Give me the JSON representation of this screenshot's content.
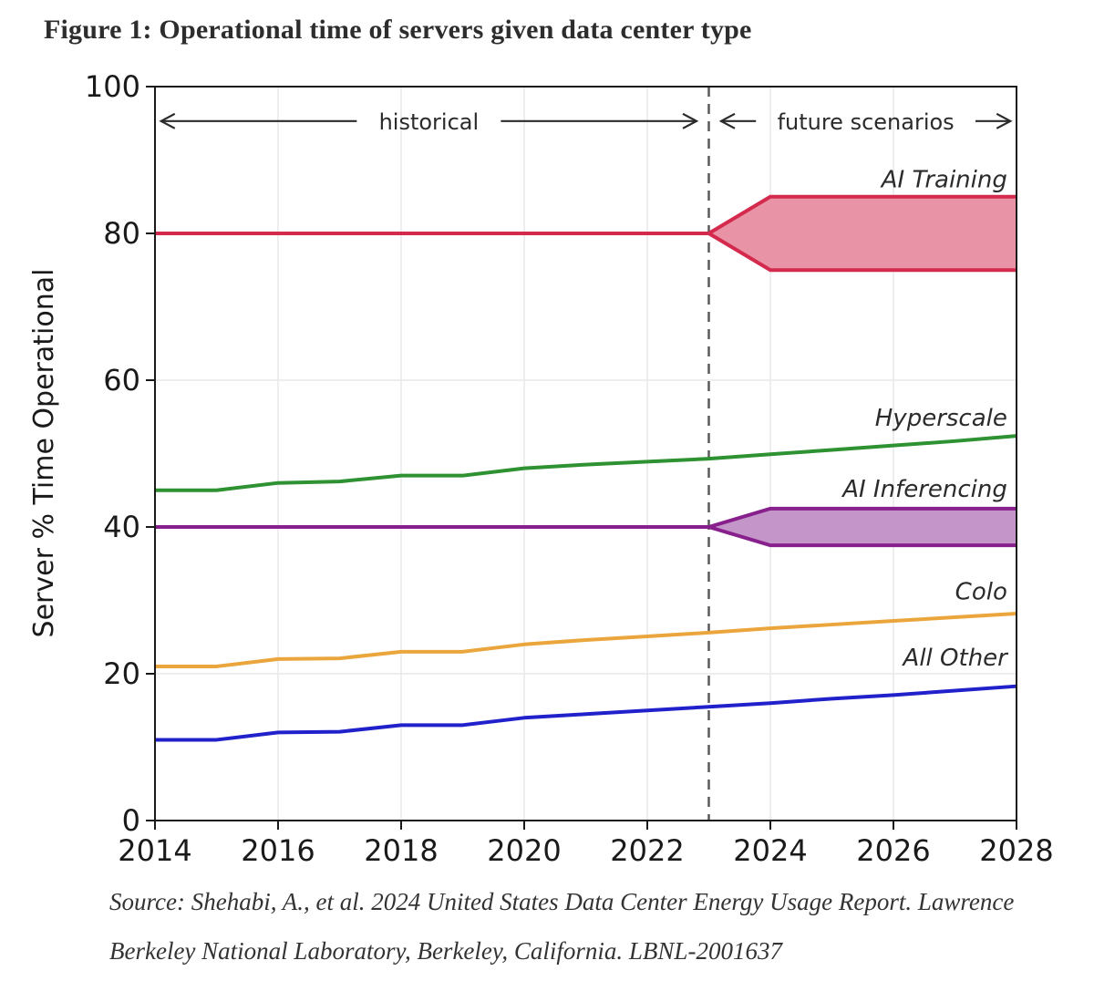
{
  "title": "Figure 1: Operational time of servers given data center type",
  "source_lines": [
    "Source: Shehabi, A., et al. 2024 United States Data Center Energy Usage Report. Lawrence",
    "Berkeley National Laboratory, Berkeley, California. LBNL-2001637"
  ],
  "chart_data": {
    "type": "line",
    "title": "Figure 1: Operational time of servers given data center type",
    "xlabel": "",
    "ylabel": "Server % Time Operational",
    "xlim": [
      2014,
      2028
    ],
    "ylim": [
      0,
      100
    ],
    "x_ticks": [
      2014,
      2016,
      2018,
      2020,
      2022,
      2024,
      2026,
      2028
    ],
    "y_ticks": [
      0,
      20,
      40,
      60,
      80,
      100
    ],
    "grid": true,
    "divider_x": 2023,
    "divider_color": "#5a5a5a",
    "grid_color": "#e9e9e9",
    "frame_color": "#1a1a1a",
    "annotations": [
      {
        "label": "historical",
        "x1": 2014.1,
        "x2": 2022.8,
        "y": 95.3
      },
      {
        "label": "future scenarios",
        "x1": 2023.2,
        "x2": 2027.9,
        "y": 95.3
      }
    ],
    "series": [
      {
        "name": "All Other",
        "color": "#2121cb",
        "x": [
          2014,
          2015,
          2016,
          2017,
          2018,
          2019,
          2020,
          2021,
          2022,
          2023,
          2024,
          2025,
          2026,
          2027,
          2028
        ],
        "values": [
          11,
          11,
          12,
          12.1,
          13,
          13,
          14,
          14.5,
          15,
          15.5,
          16,
          16.6,
          17.1,
          17.7,
          18.3
        ],
        "label_y": 21.1,
        "label_x": 2027.85
      },
      {
        "name": "Colo",
        "color": "#eaa63c",
        "x": [
          2014,
          2015,
          2016,
          2017,
          2018,
          2019,
          2020,
          2021,
          2022,
          2023,
          2024,
          2025,
          2026,
          2027,
          2028
        ],
        "values": [
          21,
          21,
          22,
          22.1,
          23,
          23,
          24,
          24.6,
          25.1,
          25.6,
          26.2,
          26.7,
          27.2,
          27.7,
          28.2
        ],
        "label_y": 30.1,
        "label_x": 2027.85
      },
      {
        "name": "Hyperscale",
        "color": "#2e9132",
        "x": [
          2014,
          2015,
          2016,
          2017,
          2018,
          2019,
          2020,
          2021,
          2022,
          2023,
          2024,
          2025,
          2026,
          2027,
          2028
        ],
        "values": [
          45,
          45,
          46,
          46.2,
          47,
          47,
          48,
          48.5,
          48.9,
          49.3,
          49.9,
          50.5,
          51.1,
          51.7,
          52.4
        ],
        "label_y": 53.8,
        "label_x": 2027.85
      },
      {
        "name": "AI Inferencing",
        "color": "#871f8d",
        "fill": "#c495c8",
        "x": [
          2014,
          2015,
          2016,
          2017,
          2018,
          2019,
          2020,
          2021,
          2022,
          2023
        ],
        "values": [
          40,
          40,
          40,
          40,
          40,
          40,
          40,
          40,
          40,
          40
        ],
        "band": {
          "x": [
            2023,
            2024,
            2028
          ],
          "upper": [
            40,
            42.5,
            42.5
          ],
          "lower": [
            40,
            37.5,
            37.5
          ]
        },
        "label_y": 44.1,
        "label_x": 2027.85
      },
      {
        "name": "AI Training",
        "color": "#d42a4d",
        "fill": "#e994a6",
        "x": [
          2014,
          2015,
          2016,
          2017,
          2018,
          2019,
          2020,
          2021,
          2022,
          2023
        ],
        "values": [
          80,
          80,
          80,
          80,
          80,
          80,
          80,
          80,
          80,
          80
        ],
        "band": {
          "x": [
            2023,
            2024,
            2028
          ],
          "upper": [
            80,
            85,
            85
          ],
          "lower": [
            80,
            75,
            75
          ]
        },
        "label_y": 86.3,
        "label_x": 2027.85
      }
    ]
  }
}
